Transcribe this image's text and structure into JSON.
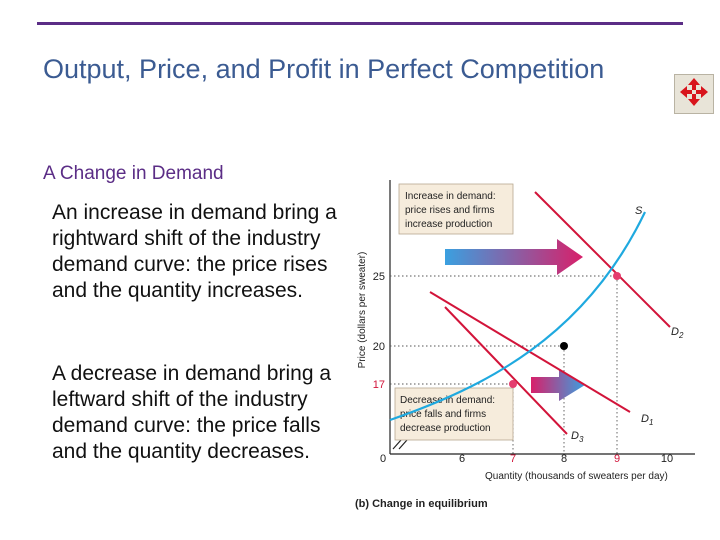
{
  "slide": {
    "title": "Output, Price, and Profit in Perfect Competition",
    "subtitle": "A Change in Demand",
    "paragraph_increase": "An increase in demand bring a rightward shift of the industry demand curve: the price rises and the quantity increases.",
    "paragraph_decrease": "A decrease in demand bring a leftward shift of the industry demand curve: the price falls and the quantity decreases.",
    "nav_icon": "move-arrows-icon"
  },
  "diagram": {
    "y_axis_label": "Price (dollars per sweater)",
    "x_axis_label": "Quantity (thousands of sweaters per day)",
    "caption": "(b) Change in equilibrium",
    "x_ticks": [
      "0",
      "6",
      "7",
      "8",
      "9",
      "10"
    ],
    "y_ticks": [
      "17",
      "20",
      "25"
    ],
    "curve_labels": {
      "supply": "S",
      "d1": "D",
      "d1_sub": "1",
      "d2": "D",
      "d2_sub": "2",
      "d3": "D",
      "d3_sub": "3"
    },
    "box_increase": [
      "Increase in demand:",
      "price rises and firms",
      "increase production"
    ],
    "box_decrease": [
      "Decrease in demand:",
      "price falls and firms",
      "decrease production"
    ],
    "colors": {
      "supply": "#1fa9df",
      "demand": "#d2143a",
      "equilibrium_new": "#e43d6e",
      "equilibrium_initial": "#000000",
      "box_fill": "#f6ecdc",
      "arrow_start": "#3aa0e0",
      "arrow_end": "#d8206a"
    }
  }
}
